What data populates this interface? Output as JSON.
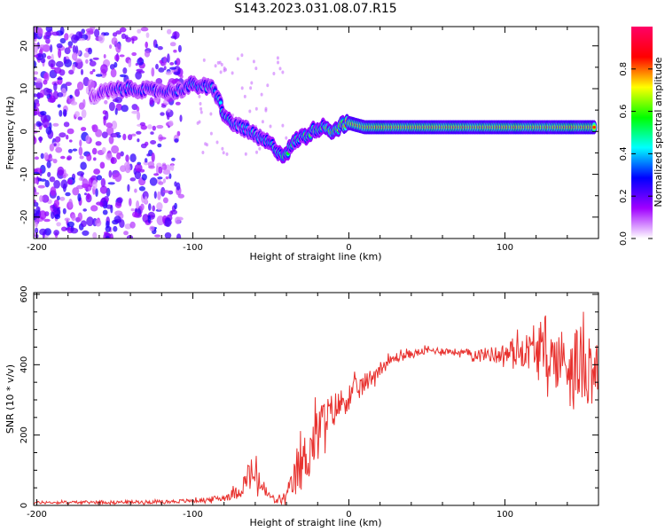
{
  "title": "S143.2023.031.08.07.R15",
  "chart_data": [
    {
      "type": "heatmap",
      "xlabel": "Height of straight line (km)",
      "ylabel": "Frequency (Hz)",
      "xlim": [
        -202,
        160
      ],
      "ylim": [
        -25,
        24.5
      ],
      "xticks": [
        -200,
        -100,
        0,
        100
      ],
      "yticks": [
        -20,
        -10,
        0,
        10,
        20
      ],
      "colorbar": {
        "label": "Normalized spectral amplitude",
        "range": [
          0,
          1
        ],
        "ticks": [
          "0.0",
          "0.2",
          "0.4",
          "0.6",
          "0.8"
        ],
        "tick_values": [
          0.0,
          0.2,
          0.4,
          0.6,
          0.8
        ],
        "colors": [
          "#ffffff",
          "#a000ff",
          "#0000ff",
          "#00ffff",
          "#00ff00",
          "#ffff00",
          "#ff0000",
          "#ff0066"
        ]
      },
      "ridge": {
        "x": [
          -165,
          -155,
          -140,
          -125,
          -110,
          -100,
          -93,
          -87,
          -84,
          -80,
          -76,
          -72,
          -68,
          -64,
          -58,
          -52,
          -47,
          -43,
          -40,
          -36,
          -32,
          -27,
          -22,
          -18,
          -14,
          -10,
          -5,
          0,
          10,
          40,
          80,
          120,
          158
        ],
        "y": [
          8,
          9.5,
          10,
          9.5,
          9.5,
          11,
          10.5,
          10,
          8,
          4,
          2,
          1.5,
          1,
          0,
          -1.5,
          -2.5,
          -4,
          -5.5,
          -5,
          -3,
          -1.5,
          -1,
          0.5,
          1,
          1,
          0,
          1.5,
          2,
          1,
          1,
          1,
          1,
          1
        ],
        "amp": [
          0.2,
          0.3,
          0.4,
          0.35,
          0.35,
          0.45,
          0.45,
          0.45,
          0.5,
          0.5,
          0.5,
          0.45,
          0.45,
          0.5,
          0.5,
          0.5,
          0.55,
          0.6,
          0.6,
          0.55,
          0.55,
          0.6,
          0.6,
          0.65,
          0.7,
          0.7,
          0.8,
          0.85,
          0.9,
          0.9,
          0.9,
          0.9,
          0.9
        ]
      }
    },
    {
      "type": "line",
      "xlabel": "Height of straight line (km)",
      "ylabel": "SNR (10 * v/v)",
      "xlim": [
        -202,
        160
      ],
      "ylim": [
        0,
        605
      ],
      "xticks": [
        -200,
        -100,
        0,
        100
      ],
      "yticks": [
        0,
        200,
        400,
        600
      ],
      "color": "#e8312e",
      "envelope": {
        "x": [
          -202,
          -120,
          -95,
          -80,
          -70,
          -63,
          -58,
          -52,
          -46,
          -40,
          -32,
          -25,
          -18,
          -10,
          -5,
          0,
          10,
          20,
          30,
          40,
          50,
          60,
          70,
          80,
          90,
          100,
          110,
          120,
          130,
          140,
          150,
          160
        ],
        "mean": [
          8,
          10,
          14,
          22,
          40,
          90,
          70,
          30,
          12,
          22,
          100,
          160,
          230,
          270,
          290,
          310,
          345,
          390,
          420,
          430,
          440,
          440,
          435,
          430,
          430,
          430,
          440,
          440,
          420,
          410,
          400,
          390
        ],
        "noise": [
          4,
          5,
          6,
          10,
          20,
          50,
          40,
          15,
          8,
          25,
          70,
          80,
          70,
          50,
          45,
          40,
          30,
          20,
          15,
          12,
          10,
          10,
          10,
          15,
          20,
          30,
          45,
          60,
          80,
          100,
          110,
          110
        ]
      }
    }
  ]
}
